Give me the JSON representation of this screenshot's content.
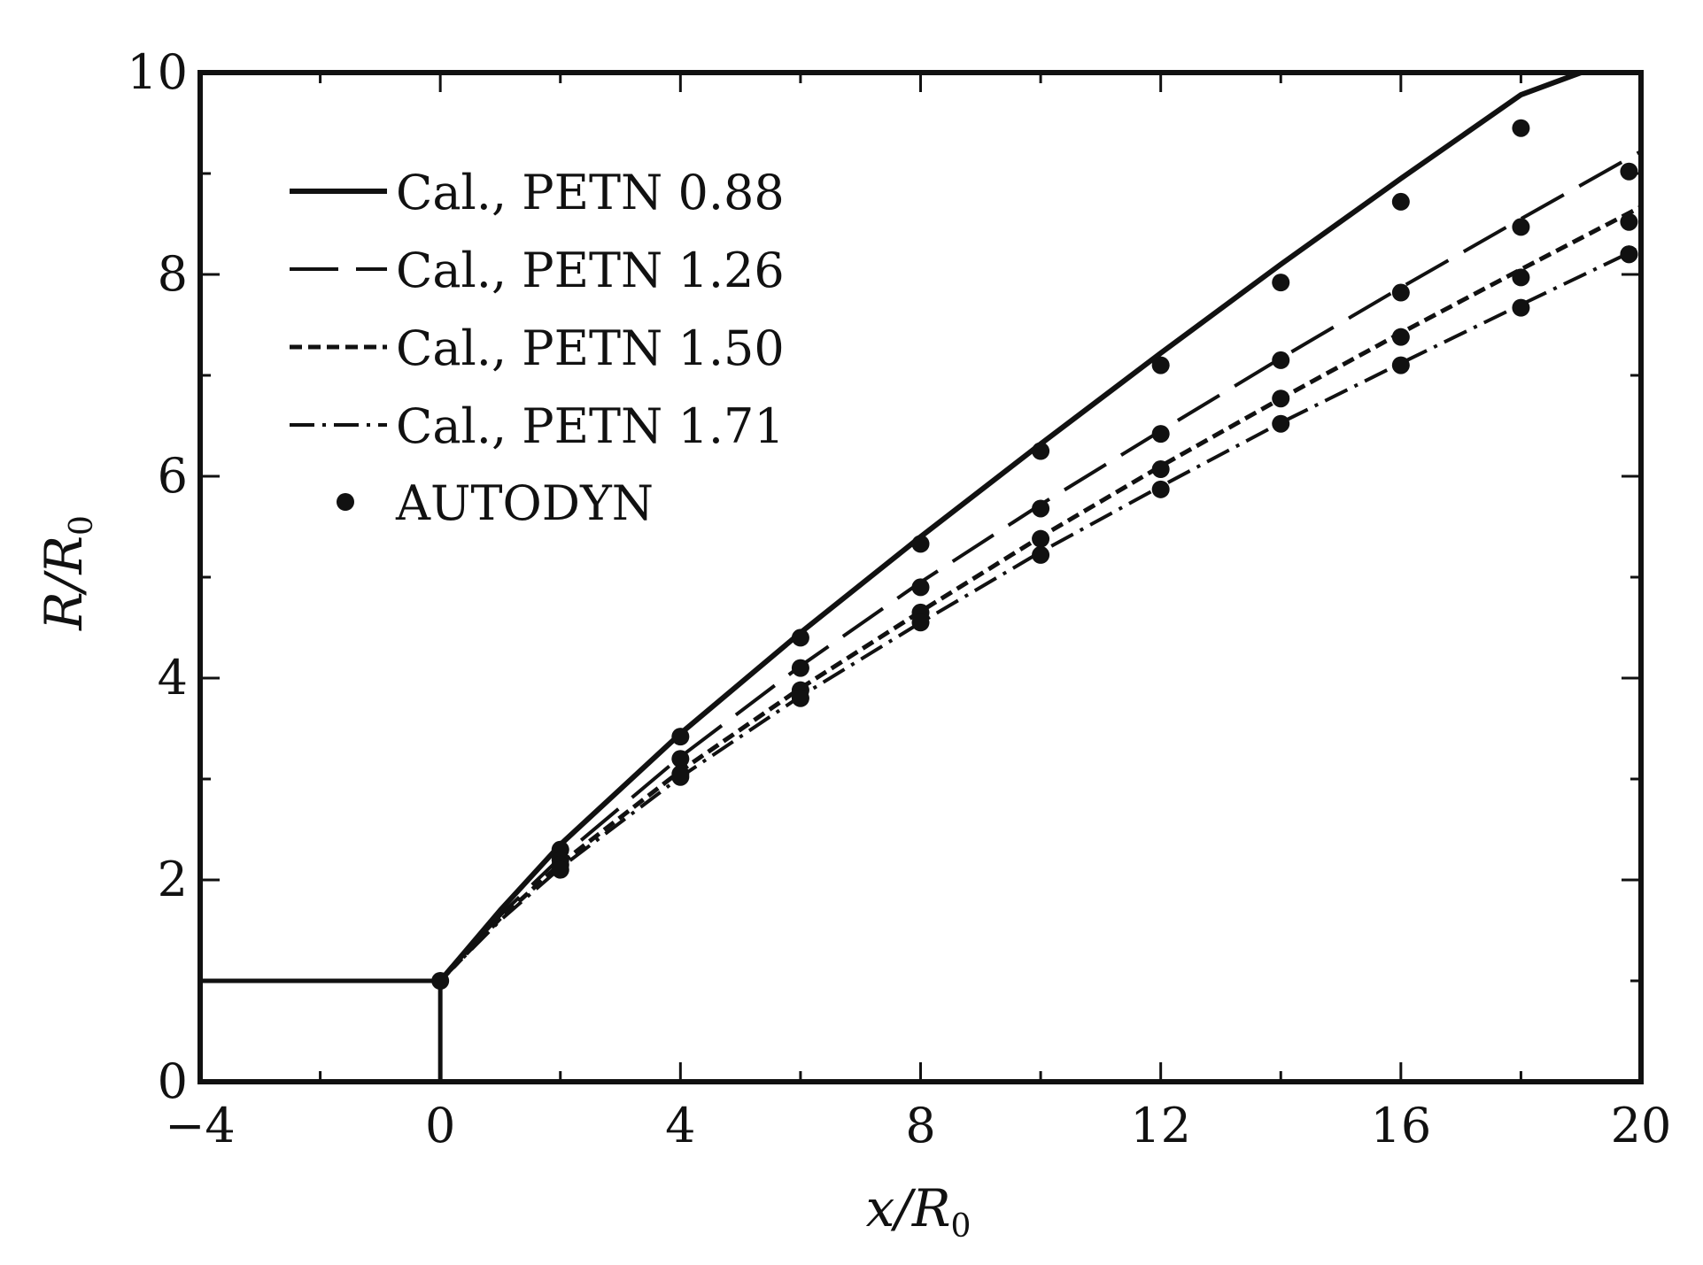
{
  "chart_data": {
    "type": "line",
    "xlabel": {
      "main": "x/R",
      "sub": "0"
    },
    "ylabel": {
      "main": "R/R",
      "sub": "0"
    },
    "xlim": [
      -4,
      20
    ],
    "ylim": [
      0,
      10
    ],
    "xticks": [
      -4,
      0,
      4,
      8,
      12,
      16,
      20
    ],
    "yticks": [
      0,
      2,
      4,
      6,
      8,
      10
    ],
    "x_minor_step": 2,
    "y_minor_step": 1,
    "grid": false,
    "legend_position": "top-left",
    "charge_outline": {
      "x": [
        -4,
        0,
        0
      ],
      "y": [
        1,
        1,
        0
      ]
    },
    "series": [
      {
        "name": "Cal., PETN 0.88",
        "style": "solid",
        "x": [
          0,
          1,
          2,
          4,
          6,
          8,
          10,
          12,
          14,
          16,
          18,
          19
        ],
        "y": [
          1.0,
          1.7,
          2.35,
          3.45,
          4.45,
          5.4,
          6.32,
          7.22,
          8.1,
          8.95,
          9.78,
          10.0
        ]
      },
      {
        "name": "Cal., PETN 1.26",
        "style": "dashed",
        "x": [
          0,
          1,
          2,
          4,
          6,
          8,
          10,
          12,
          14,
          16,
          18,
          20
        ],
        "y": [
          1.0,
          1.65,
          2.22,
          3.22,
          4.12,
          4.95,
          5.72,
          6.45,
          7.17,
          7.87,
          8.55,
          9.22
        ]
      },
      {
        "name": "Cal., PETN 1.50",
        "style": "dotted",
        "x": [
          0,
          1,
          2,
          4,
          6,
          8,
          10,
          12,
          14,
          16,
          18,
          20
        ],
        "y": [
          1.0,
          1.62,
          2.16,
          3.08,
          3.9,
          4.66,
          5.4,
          6.1,
          6.77,
          7.42,
          8.05,
          8.67
        ]
      },
      {
        "name": "Cal., PETN 1.71",
        "style": "dashdot",
        "x": [
          0,
          1,
          2,
          4,
          6,
          8,
          10,
          12,
          14,
          16,
          18,
          20
        ],
        "y": [
          1.0,
          1.6,
          2.12,
          3.02,
          3.82,
          4.55,
          5.25,
          5.9,
          6.53,
          7.12,
          7.7,
          8.27
        ]
      }
    ],
    "autodyn": {
      "name": "AUTODYN",
      "x": [
        0,
        2,
        2,
        2,
        2,
        4,
        4,
        4,
        4,
        6,
        6,
        6,
        6,
        8,
        8,
        8,
        8,
        10,
        10,
        10,
        10,
        12,
        12,
        12,
        12,
        14,
        14,
        14,
        14,
        16,
        16,
        16,
        16,
        18,
        18,
        18,
        18,
        19.8,
        19.8,
        19.8,
        19.8
      ],
      "y": [
        1.0,
        2.3,
        2.2,
        2.15,
        2.1,
        3.42,
        3.2,
        3.05,
        3.02,
        4.4,
        4.1,
        3.88,
        3.8,
        5.33,
        4.9,
        4.65,
        4.55,
        6.25,
        5.68,
        5.38,
        5.22,
        7.1,
        6.42,
        6.07,
        5.87,
        7.92,
        7.15,
        6.77,
        6.52,
        8.72,
        7.82,
        7.38,
        7.1,
        9.45,
        8.47,
        7.97,
        7.67,
        9.02,
        8.52,
        8.2,
        8.2
      ]
    }
  }
}
